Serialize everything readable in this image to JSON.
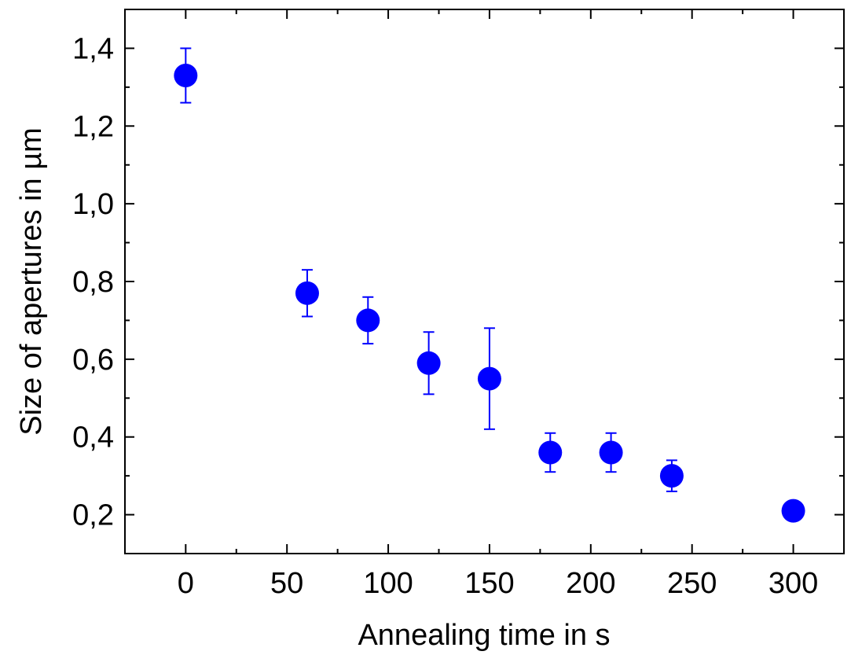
{
  "chart_data": {
    "type": "scatter",
    "xlabel": "Annealing time in s",
    "ylabel": "Size of apertures in µm",
    "xlim": [
      -30,
      325
    ],
    "ylim": [
      0.1,
      1.5
    ],
    "x_ticks": [
      0,
      50,
      100,
      150,
      200,
      250,
      300
    ],
    "x_tick_labels": [
      "0",
      "50",
      "100",
      "150",
      "200",
      "250",
      "300"
    ],
    "y_ticks": [
      0.2,
      0.4,
      0.6,
      0.8,
      1.0,
      1.2,
      1.4
    ],
    "y_tick_labels": [
      "0,2",
      "0,4",
      "0,6",
      "0,8",
      "1,0",
      "1,2",
      "1,4"
    ],
    "grid": false,
    "legend": "none",
    "marker_color": "#0000ff",
    "series": [
      {
        "x": [
          0,
          60,
          90,
          120,
          150,
          180,
          210,
          240,
          300
        ],
        "y": [
          1.33,
          0.77,
          0.7,
          0.59,
          0.55,
          0.36,
          0.36,
          0.3,
          0.21
        ],
        "yerr_low": [
          1.26,
          0.71,
          0.64,
          0.51,
          0.42,
          0.31,
          0.31,
          0.26,
          null
        ],
        "yerr_high": [
          1.4,
          0.83,
          0.76,
          0.67,
          0.68,
          0.41,
          0.41,
          0.34,
          null
        ]
      }
    ]
  }
}
